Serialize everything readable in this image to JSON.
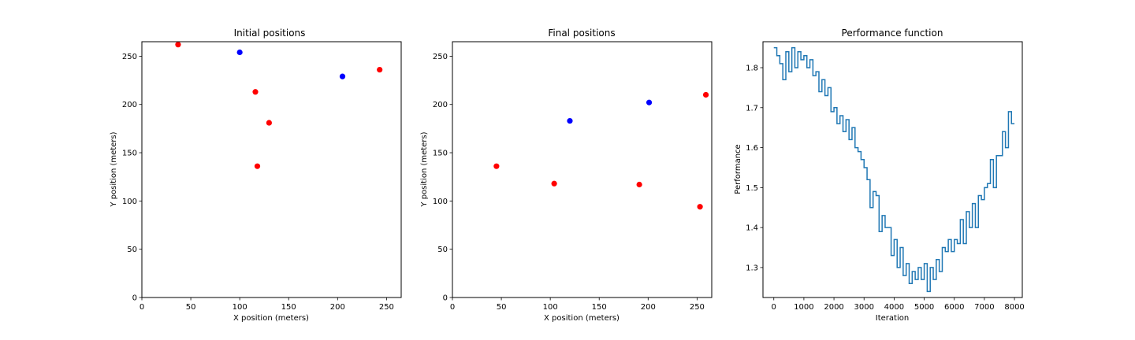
{
  "chart_data": [
    {
      "type": "scatter",
      "title": "Initial positions",
      "xlabel": "X position (meters)",
      "ylabel": "Y position (meters)",
      "xlim": [
        0,
        265
      ],
      "ylim": [
        0,
        265
      ],
      "xticks": [
        0,
        50,
        100,
        150,
        200,
        250
      ],
      "yticks": [
        0,
        50,
        100,
        150,
        200,
        250
      ],
      "grid": false,
      "series": [
        {
          "color": "#ff0000",
          "points": [
            [
              37,
              262
            ],
            [
              116,
              213
            ],
            [
              130,
              181
            ],
            [
              118,
              136
            ],
            [
              243,
              236
            ]
          ]
        },
        {
          "color": "#0000ff",
          "points": [
            [
              100,
              254
            ],
            [
              205,
              229
            ]
          ]
        }
      ]
    },
    {
      "type": "scatter",
      "title": "Final positions",
      "xlabel": "X position (meters)",
      "ylabel": "Y position (meters)",
      "xlim": [
        0,
        265
      ],
      "ylim": [
        0,
        265
      ],
      "xticks": [
        0,
        50,
        100,
        150,
        200,
        250
      ],
      "yticks": [
        0,
        50,
        100,
        150,
        200,
        250
      ],
      "grid": false,
      "series": [
        {
          "color": "#ff0000",
          "points": [
            [
              45,
              136
            ],
            [
              104,
              118
            ],
            [
              191,
              117
            ],
            [
              253,
              94
            ],
            [
              259,
              210
            ]
          ]
        },
        {
          "color": "#0000ff",
          "points": [
            [
              120,
              183
            ],
            [
              201,
              202
            ]
          ]
        }
      ]
    },
    {
      "type": "line",
      "step": true,
      "title": "Performance function",
      "xlabel": "Iteration",
      "ylabel": "Performance",
      "xlim": [
        -360,
        8260
      ],
      "ylim": [
        1.225,
        1.865
      ],
      "xticks": [
        0,
        1000,
        2000,
        3000,
        4000,
        5000,
        6000,
        7000,
        8000
      ],
      "yticks": [
        1.3,
        1.4,
        1.5,
        1.6,
        1.7,
        1.8
      ],
      "grid": false,
      "series": [
        {
          "color": "#1f77b4",
          "x": [
            0,
            100,
            200,
            300,
            400,
            500,
            600,
            700,
            800,
            900,
            1000,
            1100,
            1200,
            1300,
            1400,
            1500,
            1600,
            1700,
            1800,
            1900,
            2000,
            2100,
            2200,
            2300,
            2400,
            2500,
            2600,
            2700,
            2800,
            2900,
            3000,
            3100,
            3200,
            3300,
            3400,
            3500,
            3600,
            3700,
            3800,
            3900,
            4000,
            4100,
            4200,
            4300,
            4400,
            4500,
            4600,
            4700,
            4800,
            4900,
            5000,
            5100,
            5200,
            5300,
            5400,
            5500,
            5600,
            5700,
            5800,
            5900,
            6000,
            6100,
            6200,
            6300,
            6400,
            6500,
            6600,
            6700,
            6800,
            6900,
            7000,
            7100,
            7200,
            7300,
            7400,
            7500,
            7600,
            7700,
            7800,
            7900
          ],
          "y": [
            1.85,
            1.83,
            1.81,
            1.77,
            1.84,
            1.79,
            1.85,
            1.8,
            1.84,
            1.82,
            1.83,
            1.8,
            1.82,
            1.78,
            1.79,
            1.74,
            1.77,
            1.73,
            1.75,
            1.69,
            1.7,
            1.66,
            1.68,
            1.64,
            1.67,
            1.62,
            1.65,
            1.6,
            1.59,
            1.57,
            1.55,
            1.52,
            1.45,
            1.49,
            1.48,
            1.39,
            1.43,
            1.4,
            1.4,
            1.33,
            1.37,
            1.3,
            1.35,
            1.28,
            1.31,
            1.26,
            1.29,
            1.27,
            1.3,
            1.27,
            1.31,
            1.24,
            1.3,
            1.27,
            1.32,
            1.29,
            1.35,
            1.34,
            1.37,
            1.34,
            1.37,
            1.36,
            1.42,
            1.36,
            1.44,
            1.4,
            1.46,
            1.4,
            1.48,
            1.47,
            1.5,
            1.51,
            1.57,
            1.5,
            1.58,
            1.58,
            1.64,
            1.6,
            1.69,
            1.66
          ]
        }
      ]
    }
  ]
}
